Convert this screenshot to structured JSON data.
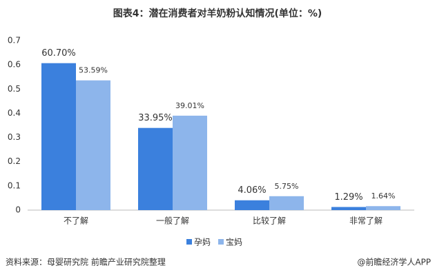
{
  "chart_data": {
    "type": "bar",
    "title": "图表4：潜在消费者对羊奶粉认知情况(单位：%)",
    "categories": [
      "不了解",
      "一般了解",
      "比较了解",
      "非常了解"
    ],
    "series": [
      {
        "name": "孕妈",
        "color": "#3b80dd",
        "values": [
          0.607,
          0.3395,
          0.0406,
          0.0129
        ],
        "value_labels": [
          "60.70%",
          "33.95%",
          "4.06%",
          "1.29%"
        ]
      },
      {
        "name": "宝妈",
        "color": "#8db5eb",
        "values": [
          0.5359,
          0.3901,
          0.0575,
          0.0164
        ],
        "value_labels": [
          "53.59%",
          "39.01%",
          "5.75%",
          "1.64%"
        ]
      }
    ],
    "ylim": [
      0,
      0.7
    ],
    "yticks": [
      0,
      0.1,
      0.2,
      0.3,
      0.4,
      0.5,
      0.6,
      0.7
    ],
    "grid": false,
    "legend": "bottom",
    "source": "资料来源：母婴研究院 前瞻产业研究院整理",
    "credit": "@前瞻经济学人APP"
  }
}
